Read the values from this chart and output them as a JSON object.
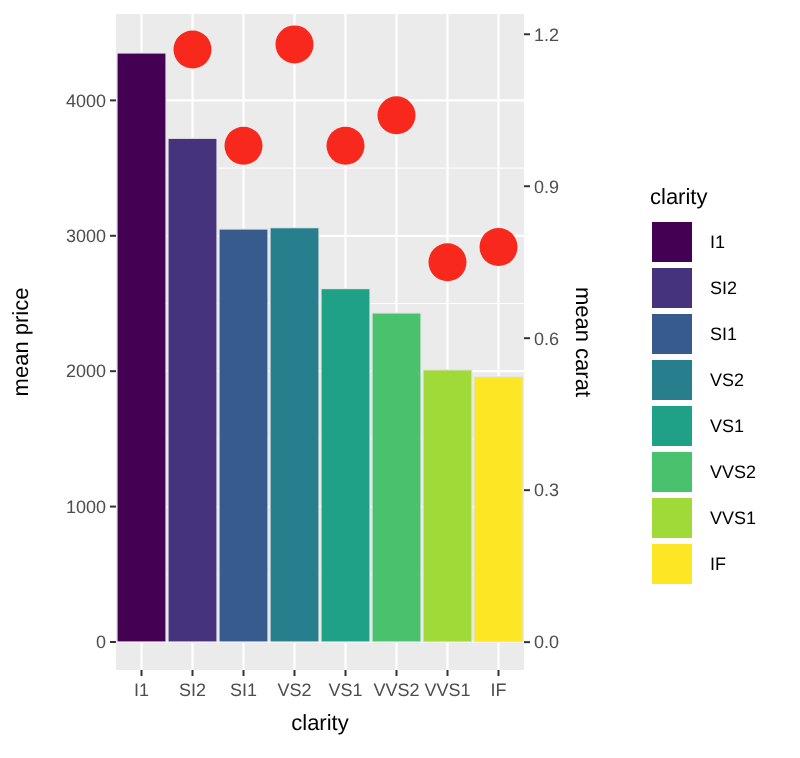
{
  "chart_data": {
    "type": "bar",
    "stacked": true,
    "categories": [
      "I1",
      "SI2",
      "SI1",
      "VS2",
      "VS1",
      "VVS2",
      "VVS1",
      "IF"
    ],
    "xlabel": "clarity",
    "ylabel": "mean price",
    "y2label": "mean carat",
    "legend_title": "clarity",
    "legend": "right",
    "grid": true,
    "ylim": [
      -207,
      4638
    ],
    "yticks": [
      0,
      1000,
      2000,
      3000,
      4000
    ],
    "y2lim": [
      -0.055,
      1.24
    ],
    "y2ticks": [
      {
        "value": 0,
        "label": "0.0"
      },
      0.3,
      0.6,
      0.9,
      1.2
    ],
    "series": [
      {
        "name": "I1",
        "color": "#440154",
        "values": [
          4350,
          null,
          null,
          null,
          null,
          null,
          null,
          null
        ]
      },
      {
        "name": "SI2",
        "color": "#46337e",
        "values": [
          null,
          3720,
          null,
          null,
          null,
          null,
          null,
          null
        ]
      },
      {
        "name": "SI1",
        "color": "#365c8d",
        "values": [
          null,
          null,
          3050,
          null,
          null,
          null,
          null,
          null
        ]
      },
      {
        "name": "VS2",
        "color": "#277f8e",
        "values": [
          null,
          null,
          null,
          3060,
          null,
          null,
          null,
          null
        ]
      },
      {
        "name": "VS1",
        "color": "#1fa187",
        "values": [
          null,
          null,
          null,
          null,
          2610,
          null,
          null,
          null
        ]
      },
      {
        "name": "VVS2",
        "color": "#4ac16d",
        "values": [
          null,
          null,
          null,
          null,
          null,
          2430,
          null,
          null
        ]
      },
      {
        "name": "VVS1",
        "color": "#a0da39",
        "values": [
          null,
          null,
          null,
          null,
          null,
          null,
          2010,
          null
        ]
      },
      {
        "name": "IF",
        "color": "#fde725",
        "values": [
          null,
          null,
          null,
          null,
          null,
          null,
          null,
          1960
        ]
      },
      {
        "type": "scatter",
        "axis": "y2",
        "color": "#f8291c",
        "marker": "circle",
        "values": [
          null,
          1.17,
          0.98,
          1.18,
          0.98,
          1.04,
          0.75,
          0.78
        ]
      }
    ]
  }
}
